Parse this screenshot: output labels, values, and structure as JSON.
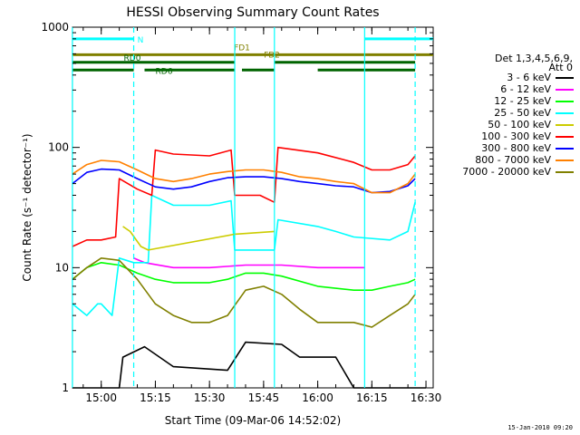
{
  "chart_data": {
    "type": "line",
    "title": "HESSI Observing Summary Count Rates",
    "xlabel": "Start Time (09-Mar-06 14:52:02)",
    "ylabel": "Count Rate (s⁻¹ detector⁻¹)",
    "yscale": "log",
    "xlim": [
      "14:52:02",
      "16:32:00"
    ],
    "ylim": [
      1,
      1000
    ],
    "x_ticks": [
      "15:00",
      "15:15",
      "15:30",
      "15:45",
      "16:00",
      "16:15",
      "16:30"
    ],
    "y_ticks": [
      "1",
      "10",
      "100",
      "1000"
    ],
    "detectors": "Det 1,3,4,5,6,9,",
    "attenuator": "Att 0",
    "timestamp": "15-Jan-2010 09:20",
    "series": [
      {
        "name": "3 - 6 keV",
        "color": "#000000",
        "points": [
          [
            "14:52",
            "1"
          ],
          [
            "15:05",
            "1"
          ],
          [
            "15:06",
            "1.8"
          ],
          [
            "15:12",
            "2.2"
          ],
          [
            "15:20",
            "1.5"
          ],
          [
            "15:35",
            "1.4"
          ],
          [
            "15:40",
            "2.4"
          ],
          [
            "15:50",
            "2.3"
          ],
          [
            "15:55",
            "1.8"
          ],
          [
            "16:05",
            "1.8"
          ],
          [
            "16:10",
            "1"
          ],
          [
            "16:30",
            "1"
          ]
        ]
      },
      {
        "name": "6 - 12 keV",
        "color": "#ff00ff",
        "points": [
          [
            "15:09",
            "12"
          ],
          [
            "15:12",
            "11"
          ],
          [
            "15:20",
            "10"
          ],
          [
            "15:30",
            "10"
          ],
          [
            "15:40",
            "10.5"
          ],
          [
            "15:50",
            "10.5"
          ],
          [
            "16:00",
            "10"
          ],
          [
            "16:10",
            "10"
          ],
          [
            "16:13",
            "10"
          ]
        ]
      },
      {
        "name": "12 - 25 keV",
        "color": "#00ff00",
        "points": [
          [
            "14:52",
            "8"
          ],
          [
            "14:56",
            "10"
          ],
          [
            "15:00",
            "11"
          ],
          [
            "15:05",
            "10.5"
          ],
          [
            "15:10",
            "9"
          ],
          [
            "15:15",
            "8"
          ],
          [
            "15:20",
            "7.5"
          ],
          [
            "15:30",
            "7.5"
          ],
          [
            "15:35",
            "8"
          ],
          [
            "15:40",
            "9"
          ],
          [
            "15:45",
            "9"
          ],
          [
            "15:50",
            "8.5"
          ],
          [
            "16:00",
            "7"
          ],
          [
            "16:10",
            "6.5"
          ],
          [
            "16:15",
            "6.5"
          ],
          [
            "16:20",
            "7"
          ],
          [
            "16:25",
            "7.5"
          ],
          [
            "16:27",
            "8"
          ]
        ]
      },
      {
        "name": "25 - 50 keV",
        "color": "#00ffff",
        "points": [
          [
            "14:52",
            "5"
          ],
          [
            "14:56",
            "4"
          ],
          [
            "14:59",
            "5"
          ],
          [
            "15:00",
            "5"
          ],
          [
            "15:03",
            "4"
          ],
          [
            "15:05",
            "12"
          ],
          [
            "15:09",
            "11"
          ],
          [
            "15:13",
            "11"
          ],
          [
            "15:14",
            "40"
          ],
          [
            "15:20",
            "33"
          ],
          [
            "15:30",
            "33"
          ],
          [
            "15:36",
            "36"
          ],
          [
            "15:37",
            "14"
          ],
          [
            "15:44",
            "14"
          ],
          [
            "15:48",
            "14"
          ],
          [
            "15:49",
            "25"
          ],
          [
            "16:00",
            "22"
          ],
          [
            "16:05",
            "20"
          ],
          [
            "16:10",
            "18"
          ],
          [
            "16:20",
            "17"
          ],
          [
            "16:25",
            "20"
          ],
          [
            "16:27",
            "35"
          ]
        ]
      },
      {
        "name": "50 - 100 keV",
        "color": "#cccc00",
        "points": [
          [
            "15:06",
            "22"
          ],
          [
            "15:08",
            "20"
          ],
          [
            "15:11",
            "15"
          ],
          [
            "15:13",
            "14"
          ],
          [
            "15:37",
            "19"
          ],
          [
            "15:48",
            "20"
          ]
        ]
      },
      {
        "name": "100 - 300 keV",
        "color": "#ff0000",
        "points": [
          [
            "14:52",
            "15"
          ],
          [
            "14:56",
            "17"
          ],
          [
            "15:00",
            "17"
          ],
          [
            "15:04",
            "18"
          ],
          [
            "15:05",
            "55"
          ],
          [
            "15:10",
            "45"
          ],
          [
            "15:14",
            "40"
          ],
          [
            "15:15",
            "95"
          ],
          [
            "15:20",
            "88"
          ],
          [
            "15:30",
            "85"
          ],
          [
            "15:36",
            "95"
          ],
          [
            "15:37",
            "40"
          ],
          [
            "15:44",
            "40"
          ],
          [
            "15:48",
            "35"
          ],
          [
            "15:49",
            "100"
          ],
          [
            "16:00",
            "90"
          ],
          [
            "16:10",
            "75"
          ],
          [
            "16:15",
            "65"
          ],
          [
            "16:20",
            "65"
          ],
          [
            "16:25",
            "72"
          ],
          [
            "16:27",
            "85"
          ]
        ]
      },
      {
        "name": "300 - 800 keV",
        "color": "#0000ff",
        "points": [
          [
            "14:52",
            "50"
          ],
          [
            "14:56",
            "62"
          ],
          [
            "15:00",
            "66"
          ],
          [
            "15:05",
            "65"
          ],
          [
            "15:10",
            "55"
          ],
          [
            "15:15",
            "47"
          ],
          [
            "15:20",
            "45"
          ],
          [
            "15:25",
            "47"
          ],
          [
            "15:30",
            "52"
          ],
          [
            "15:35",
            "56"
          ],
          [
            "15:40",
            "57"
          ],
          [
            "15:45",
            "57"
          ],
          [
            "15:50",
            "55"
          ],
          [
            "15:55",
            "52"
          ],
          [
            "16:00",
            "50"
          ],
          [
            "16:05",
            "48"
          ],
          [
            "16:10",
            "47"
          ],
          [
            "16:15",
            "42"
          ],
          [
            "16:20",
            "43"
          ],
          [
            "16:25",
            "48"
          ],
          [
            "16:27",
            "55"
          ]
        ]
      },
      {
        "name": "800 - 7000 keV",
        "color": "#ff8000",
        "points": [
          [
            "14:52",
            "60"
          ],
          [
            "14:56",
            "72"
          ],
          [
            "15:00",
            "78"
          ],
          [
            "15:05",
            "76"
          ],
          [
            "15:10",
            "65"
          ],
          [
            "15:15",
            "55"
          ],
          [
            "15:20",
            "52"
          ],
          [
            "15:25",
            "55"
          ],
          [
            "15:30",
            "60"
          ],
          [
            "15:35",
            "63"
          ],
          [
            "15:40",
            "65"
          ],
          [
            "15:45",
            "65"
          ],
          [
            "15:50",
            "62"
          ],
          [
            "15:55",
            "57"
          ],
          [
            "16:00",
            "55"
          ],
          [
            "16:05",
            "52"
          ],
          [
            "16:10",
            "50"
          ],
          [
            "16:15",
            "42"
          ],
          [
            "16:20",
            "42"
          ],
          [
            "16:25",
            "50"
          ],
          [
            "16:27",
            "60"
          ]
        ]
      },
      {
        "name": "7000 - 20000 keV",
        "color": "#808000",
        "points": [
          [
            "14:52",
            "8"
          ],
          [
            "14:56",
            "10"
          ],
          [
            "15:00",
            "12"
          ],
          [
            "15:05",
            "11.5"
          ],
          [
            "15:10",
            "8"
          ],
          [
            "15:15",
            "5"
          ],
          [
            "15:20",
            "4"
          ],
          [
            "15:25",
            "3.5"
          ],
          [
            "15:30",
            "3.5"
          ],
          [
            "15:35",
            "4"
          ],
          [
            "15:40",
            "6.5"
          ],
          [
            "15:45",
            "7"
          ],
          [
            "15:50",
            "6"
          ],
          [
            "15:55",
            "4.5"
          ],
          [
            "16:00",
            "3.5"
          ],
          [
            "16:10",
            "3.5"
          ],
          [
            "16:15",
            "3.2"
          ],
          [
            "16:20",
            "4"
          ],
          [
            "16:25",
            "5"
          ],
          [
            "16:27",
            "6"
          ]
        ]
      }
    ],
    "flags": [
      {
        "name": "N",
        "color": "#00ffff",
        "y": "800",
        "segments": [
          [
            "14:52",
            "15:09"
          ],
          [
            "16:13",
            "16:32"
          ]
        ]
      },
      {
        "name": "FD1",
        "color": "#808000",
        "y": "590",
        "segments": [
          [
            "14:52",
            "16:32"
          ]
        ]
      },
      {
        "name": "FD2",
        "color": "#808000",
        "y": "590",
        "segments": []
      },
      {
        "name": "RD0",
        "color": "#006400",
        "y": "510",
        "segments": [
          [
            "14:52",
            "15:37"
          ],
          [
            "15:48",
            "16:27"
          ]
        ]
      },
      {
        "name": "RD6",
        "color": "#006400",
        "y": "440",
        "segments": [
          [
            "14:52",
            "15:09"
          ],
          [
            "15:12",
            "15:37"
          ],
          [
            "15:39",
            "15:48"
          ],
          [
            "16:00",
            "16:27"
          ]
        ]
      }
    ],
    "vertical_markers": [
      {
        "x": "14:52",
        "style": "solid",
        "color": "#00ffff"
      },
      {
        "x": "15:09",
        "style": "dashed",
        "color": "#00ffff"
      },
      {
        "x": "15:37",
        "style": "solid",
        "color": "#00ffff"
      },
      {
        "x": "15:48",
        "style": "solid",
        "color": "#00ffff"
      },
      {
        "x": "16:13",
        "style": "solid",
        "color": "#00ffff"
      },
      {
        "x": "16:27",
        "style": "dashed",
        "color": "#00ffff"
      }
    ]
  }
}
